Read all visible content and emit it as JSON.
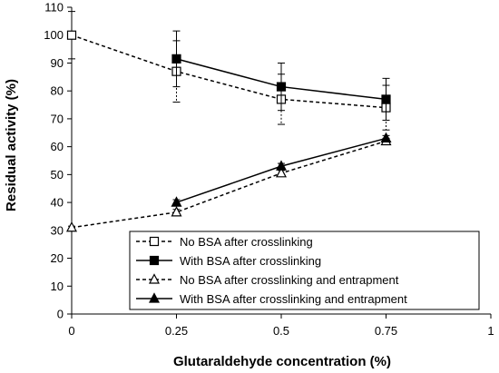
{
  "chart_data": {
    "type": "line",
    "xlabel": "Glutaraldehyde concentration (%)",
    "ylabel": "Residual activity (%)",
    "xlim": [
      0,
      1
    ],
    "ylim": [
      0,
      110
    ],
    "x_ticks": [
      "0",
      "0.25",
      "0.5",
      "0.75",
      "1"
    ],
    "y_ticks": [
      "0",
      "10",
      "20",
      "30",
      "40",
      "50",
      "60",
      "70",
      "80",
      "90",
      "100",
      "110"
    ],
    "grid": false,
    "legend_position": "bottom-right",
    "series": [
      {
        "name": "No BSA after crosslinking",
        "line_style": "dashed",
        "marker": "open-square",
        "x": [
          0,
          0.25,
          0.5,
          0.75
        ],
        "y": [
          100,
          87,
          77,
          74
        ],
        "error": [
          8.5,
          11,
          9,
          8
        ]
      },
      {
        "name": "With BSA after crosslinking",
        "line_style": "solid",
        "marker": "filled-square",
        "x": [
          0.25,
          0.5,
          0.75
        ],
        "y": [
          91.5,
          81.5,
          77
        ],
        "error": [
          10,
          8.5,
          7.5
        ]
      },
      {
        "name": "No BSA after crosslinking and entrapment",
        "line_style": "dashed",
        "marker": "open-triangle",
        "x": [
          0,
          0.25,
          0.5,
          0.75
        ],
        "y": [
          31,
          36.5,
          50.5,
          62
        ],
        "error": [
          0.5,
          1,
          1,
          1
        ]
      },
      {
        "name": "With BSA after crosslinking and entrapment",
        "line_style": "solid",
        "marker": "filled-triangle",
        "x": [
          0.25,
          0.5,
          0.75
        ],
        "y": [
          40,
          53,
          63
        ],
        "error": [
          1,
          1,
          1
        ]
      }
    ]
  }
}
